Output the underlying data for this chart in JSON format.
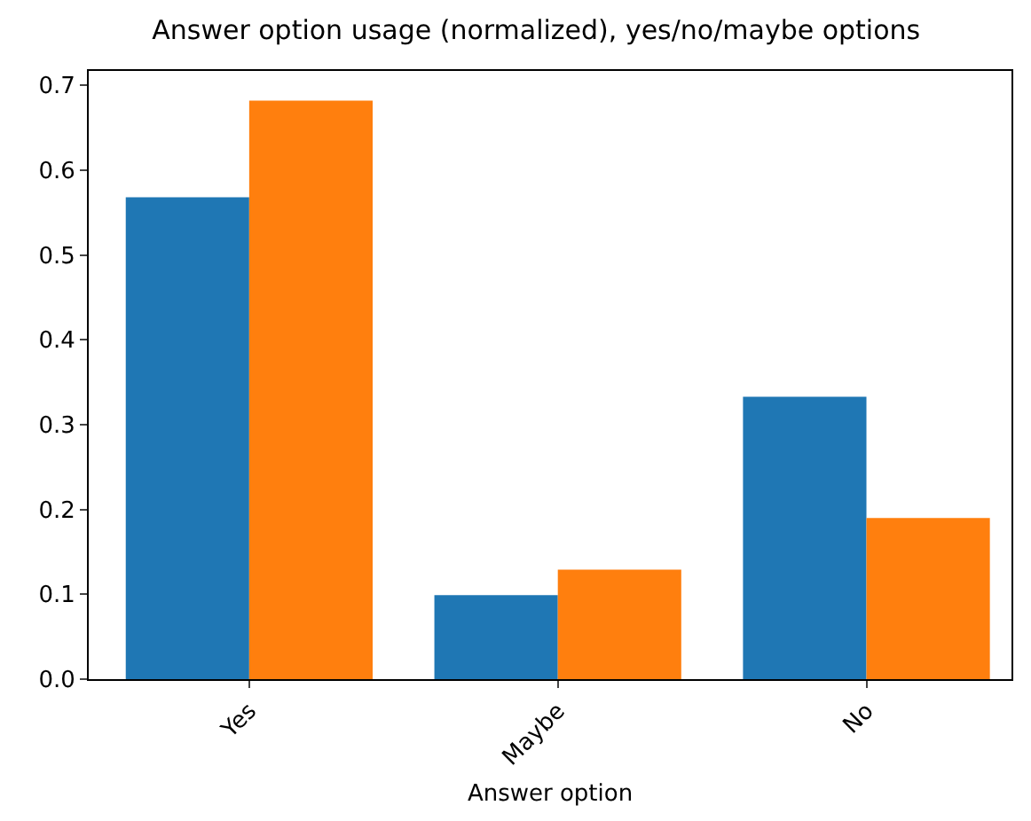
{
  "chart_data": {
    "type": "bar",
    "title": "Answer option usage (normalized), yes/no/maybe options",
    "xlabel": "Answer option",
    "categories": [
      "Yes",
      "Maybe",
      "No"
    ],
    "series": [
      {
        "color": "#1f77b4",
        "values": [
          0.568,
          0.099,
          0.333
        ]
      },
      {
        "color": "#ff7f0e",
        "values": [
          0.682,
          0.129,
          0.19
        ]
      }
    ],
    "ylim": [
      0,
      0.717
    ],
    "yticks": [
      {
        "value": 0,
        "label": "0.0"
      },
      {
        "value": 0.1,
        "label": "0.1"
      },
      {
        "value": 0.2,
        "label": "0.2"
      },
      {
        "value": 0.3,
        "label": "0.3"
      },
      {
        "value": 0.4,
        "label": "0.4"
      },
      {
        "value": 0.5,
        "label": "0.5"
      },
      {
        "value": 0.6,
        "label": "0.6"
      },
      {
        "value": 0.7,
        "label": "0.7"
      }
    ],
    "grid": false
  }
}
